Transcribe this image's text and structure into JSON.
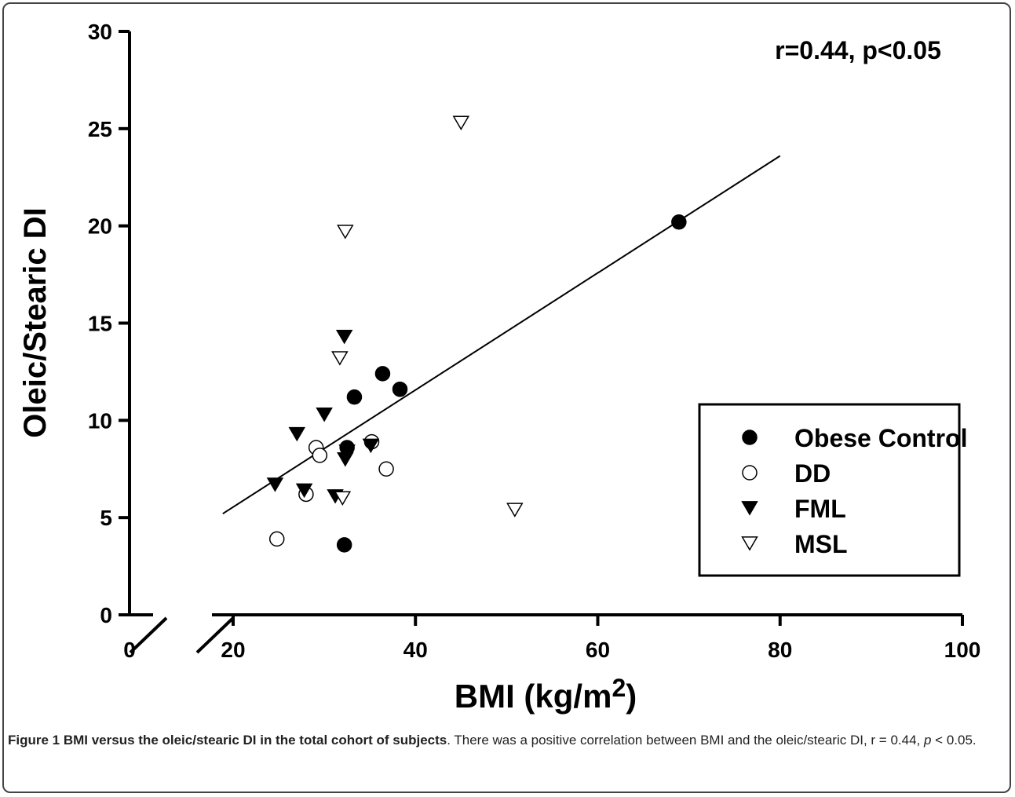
{
  "chart_data": {
    "type": "scatter",
    "xlabel": "BMI (kg/m",
    "xlabel_sup": "2",
    "xlabel_suffix": ")",
    "ylabel": "Oleic/Stearic DI",
    "xlim": [
      0,
      100
    ],
    "ylim": [
      0,
      30
    ],
    "axis_break": true,
    "xticks": [
      "0",
      "20",
      "40",
      "60",
      "80",
      "100"
    ],
    "xtick_values": [
      0,
      20,
      40,
      60,
      80,
      100
    ],
    "yticks": [
      "0",
      "5",
      "10",
      "15",
      "20",
      "25",
      "30"
    ],
    "ytick_values": [
      0,
      5,
      10,
      15,
      20,
      25,
      30
    ],
    "grid": false,
    "legend_position": "right",
    "annotation": "r=0.44, p<0.05",
    "regression_line": {
      "x": [
        18,
        80
      ],
      "y": [
        5.2,
        23.6
      ]
    },
    "series": [
      {
        "name": "Obese Control",
        "marker": "filled-circle",
        "points": [
          [
            32.2,
            3.6
          ],
          [
            32.5,
            8.6
          ],
          [
            33.3,
            11.2
          ],
          [
            36.4,
            12.4
          ],
          [
            38.3,
            11.6
          ],
          [
            68.9,
            20.2
          ]
        ]
      },
      {
        "name": "DD",
        "marker": "open-circle",
        "points": [
          [
            24.8,
            3.9
          ],
          [
            28.0,
            6.2
          ],
          [
            29.1,
            8.6
          ],
          [
            29.5,
            8.2
          ],
          [
            35.2,
            8.9
          ],
          [
            36.8,
            7.5
          ]
        ]
      },
      {
        "name": "FML",
        "marker": "filled-triangle-down",
        "points": [
          [
            24.6,
            6.7
          ],
          [
            27.0,
            9.3
          ],
          [
            27.8,
            6.4
          ],
          [
            30.0,
            10.3
          ],
          [
            31.2,
            6.1
          ],
          [
            32.2,
            14.3
          ],
          [
            32.3,
            8.0
          ],
          [
            32.5,
            8.4
          ],
          [
            35.1,
            8.7
          ]
        ]
      },
      {
        "name": "MSL",
        "marker": "open-triangle-down",
        "points": [
          [
            31.7,
            13.2
          ],
          [
            32.0,
            6.0
          ],
          [
            32.3,
            19.7
          ],
          [
            45.0,
            25.3
          ],
          [
            50.9,
            5.4
          ]
        ]
      }
    ]
  },
  "caption": {
    "label": "Figure 1 BMI versus the oleic/stearic DI in the total cohort of subjects",
    "text": ". There was a positive correlation between BMI and the oleic/stearic DI, r = 0.44, ",
    "p_italic": "p",
    "text_end": " < 0.05."
  }
}
